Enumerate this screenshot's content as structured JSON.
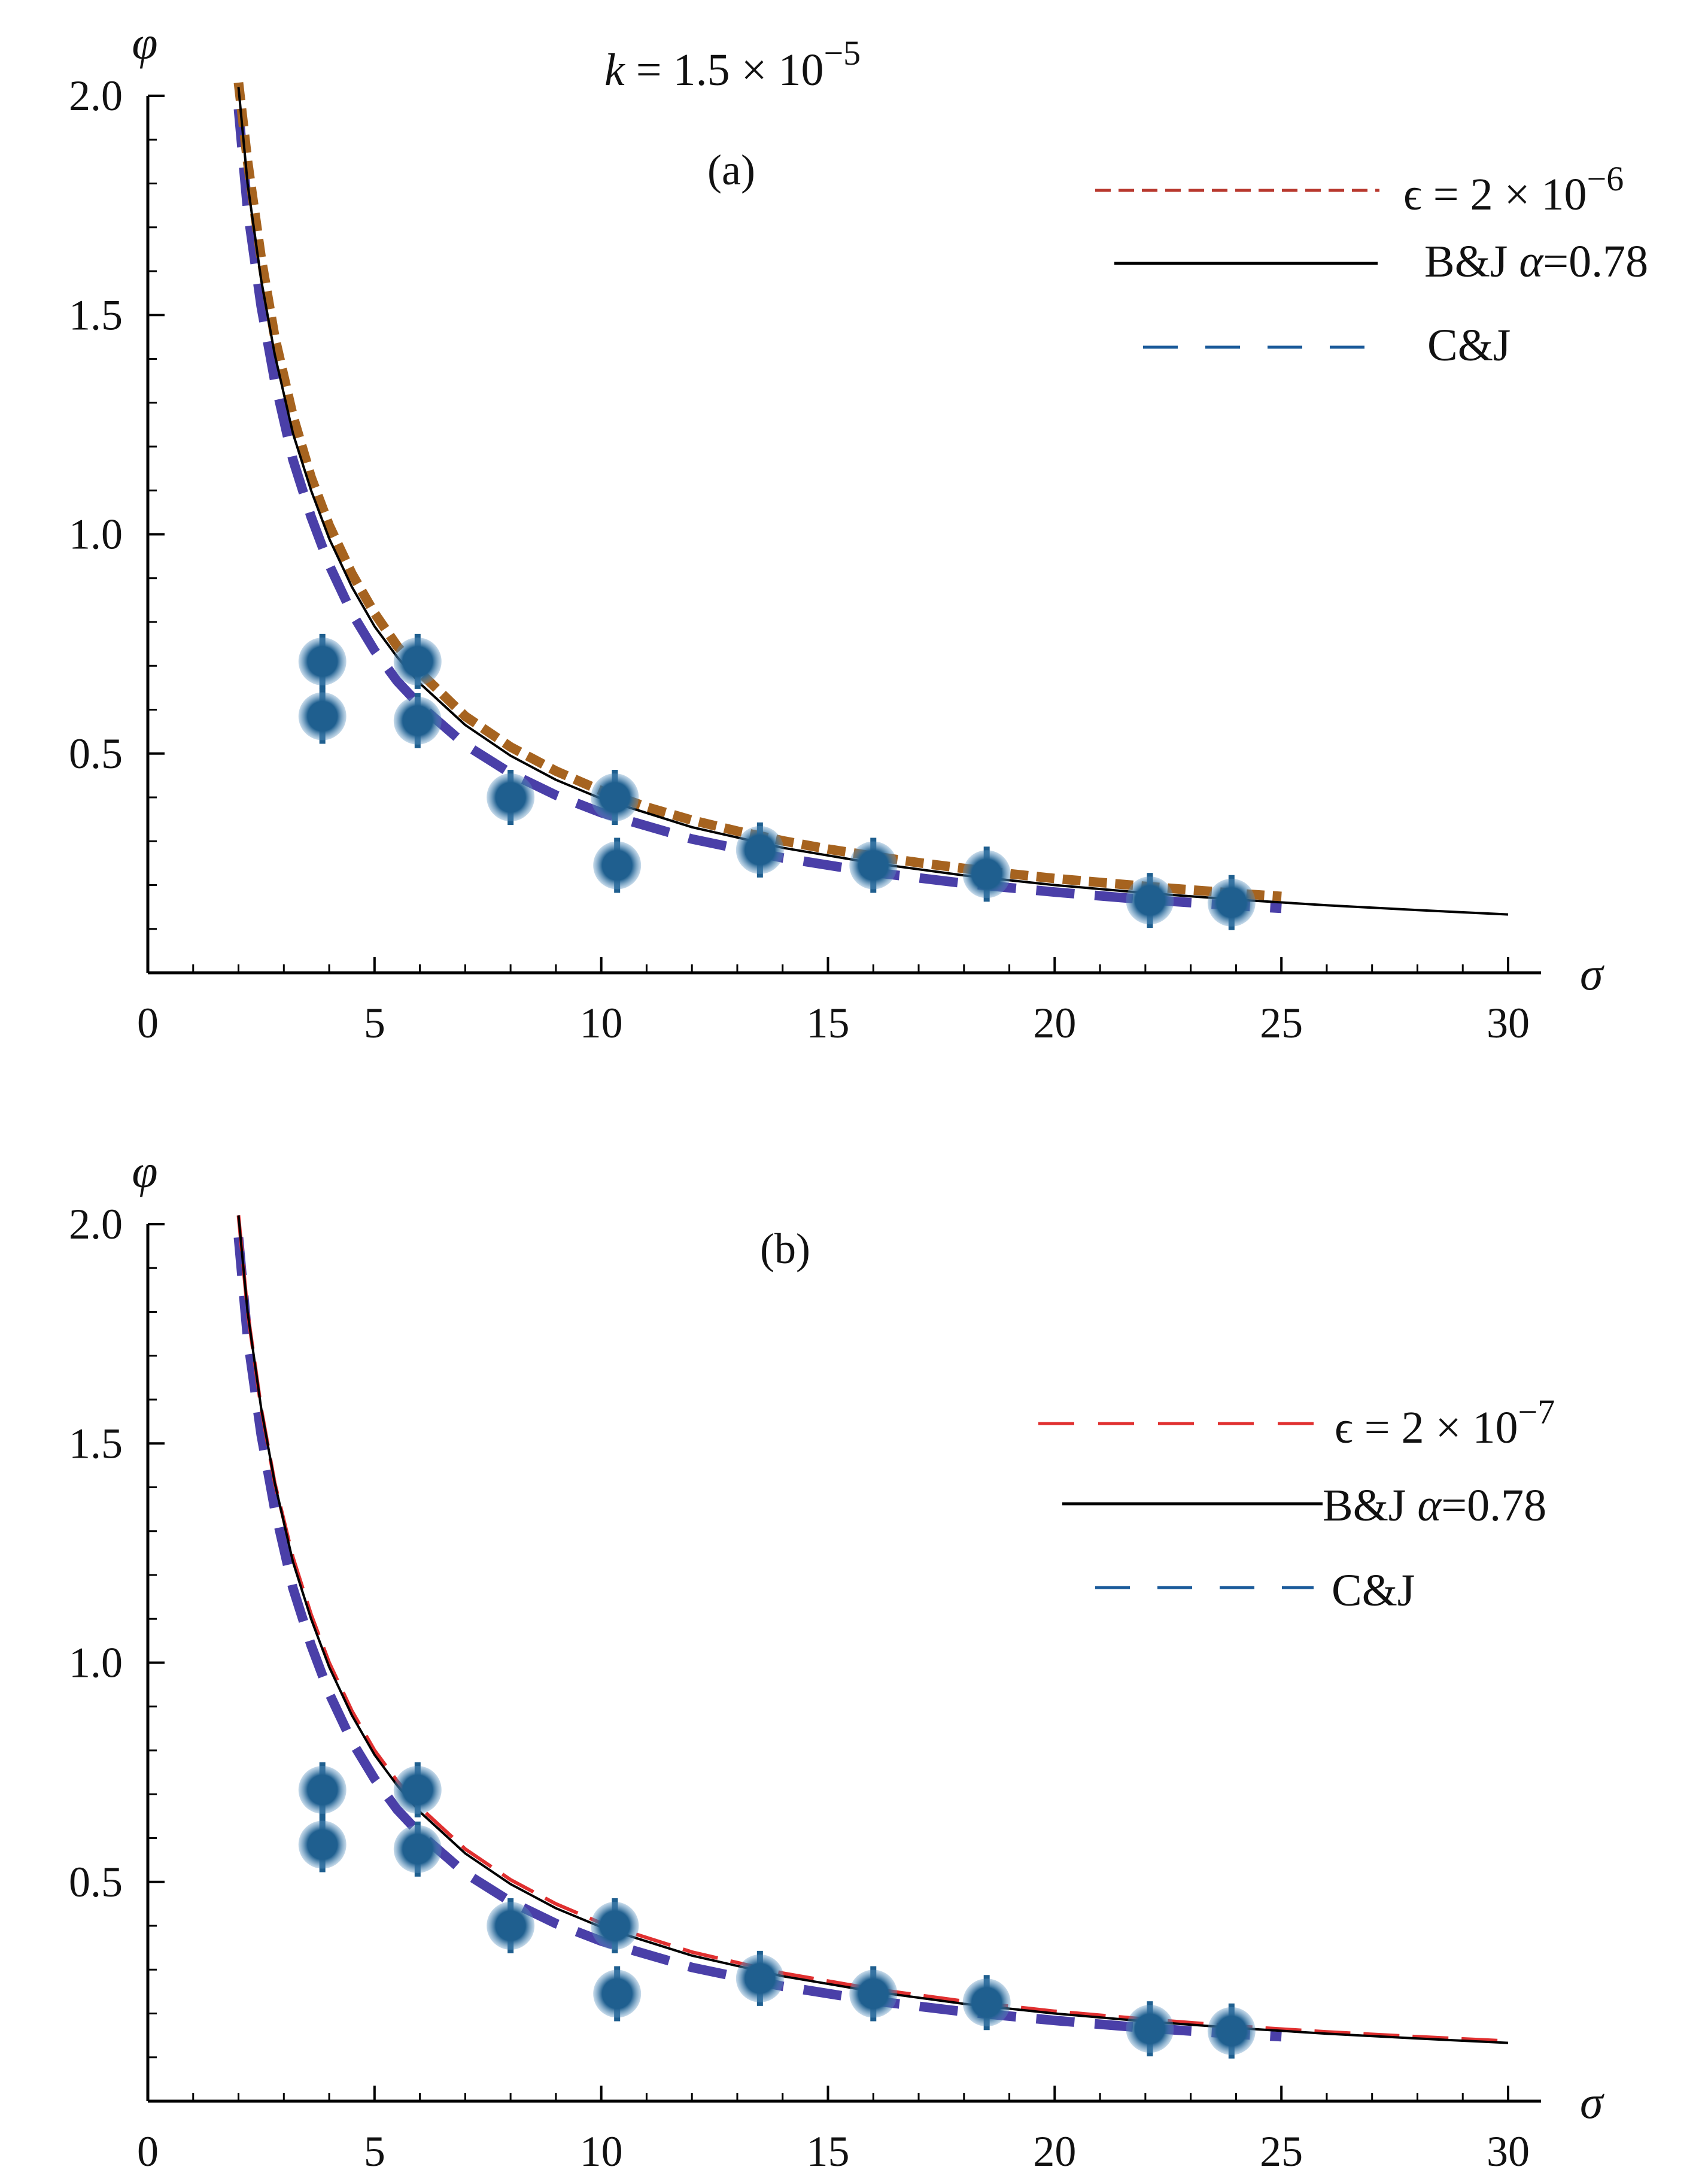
{
  "figure": {
    "header": {
      "k_symbol": "k",
      "k_expr": " = 1.5 × 10",
      "k_exp": "−5"
    }
  },
  "chart_data": [
    {
      "type": "line",
      "panel_label": "(a)",
      "xlabel": "σ",
      "ylabel": "φ",
      "xlim": [
        0,
        30
      ],
      "ylim": [
        0,
        2.0
      ],
      "x_ticks": [
        "0",
        "5",
        "10",
        "15",
        "20",
        "25",
        "30"
      ],
      "y_ticks": [
        "0.5",
        "1.0",
        "1.5",
        "2.0"
      ],
      "legend_position": "top-right",
      "series": [
        {
          "name": "ϵ = 2 × 10",
          "name_exp": "−6",
          "style": "dashed",
          "color": "#a6631f",
          "legend_color": "#b8382e",
          "x": [
            2.0,
            2.2,
            2.5,
            2.8,
            3.2,
            3.6,
            4.0,
            4.5,
            5.0,
            5.5,
            6.0,
            7.0,
            8.0,
            9.0,
            10.0,
            11.0,
            12.0,
            13.0,
            14.0,
            15.0,
            16.0,
            17.0,
            18.0,
            19.0,
            20.0,
            22.0,
            24.0,
            25.0
          ],
          "y": [
            2.03,
            1.85,
            1.63,
            1.45,
            1.27,
            1.13,
            1.02,
            0.91,
            0.82,
            0.745,
            0.685,
            0.585,
            0.515,
            0.46,
            0.415,
            0.378,
            0.348,
            0.323,
            0.301,
            0.282,
            0.266,
            0.251,
            0.238,
            0.226,
            0.215,
            0.197,
            0.181,
            0.174
          ]
        },
        {
          "name": "B&J ",
          "name_alpha": "α",
          "name_tail": "=0.78",
          "style": "solid",
          "color": "#000000",
          "x": [
            2.0,
            2.2,
            2.5,
            2.8,
            3.2,
            3.6,
            4.0,
            4.5,
            5.0,
            5.5,
            6.0,
            7.0,
            8.0,
            9.0,
            10.0,
            12.0,
            14.0,
            16.0,
            18.0,
            20.0,
            22.0,
            24.0,
            26.0,
            28.0,
            30.0
          ],
          "y": [
            2.02,
            1.8,
            1.58,
            1.41,
            1.23,
            1.1,
            0.99,
            0.88,
            0.79,
            0.72,
            0.66,
            0.565,
            0.495,
            0.44,
            0.397,
            0.332,
            0.285,
            0.25,
            0.222,
            0.2,
            0.182,
            0.167,
            0.154,
            0.143,
            0.133
          ]
        },
        {
          "name": "C&J",
          "style": "long-dash",
          "color": "#4a3fa8",
          "legend_color": "#1a5a9a",
          "x": [
            2.0,
            2.2,
            2.5,
            2.8,
            3.2,
            3.6,
            4.0,
            4.5,
            5.0,
            5.5,
            6.0,
            7.0,
            8.0,
            9.0,
            10.0,
            12.0,
            14.0,
            16.0,
            18.0,
            20.0,
            22.0,
            24.0,
            25.0
          ],
          "y": [
            1.97,
            1.74,
            1.52,
            1.35,
            1.17,
            1.04,
            0.93,
            0.82,
            0.735,
            0.665,
            0.61,
            0.52,
            0.455,
            0.405,
            0.365,
            0.305,
            0.262,
            0.229,
            0.204,
            0.184,
            0.167,
            0.153,
            0.147
          ]
        }
      ],
      "points": {
        "name": "measurements",
        "color": "#1f5f8f",
        "x": [
          3.85,
          3.85,
          5.95,
          5.95,
          8.0,
          10.3,
          10.35,
          13.5,
          16.0,
          18.5,
          22.1,
          23.9
        ],
        "y": [
          0.71,
          0.585,
          0.71,
          0.575,
          0.4,
          0.4,
          0.245,
          0.28,
          0.245,
          0.225,
          0.165,
          0.16
        ]
      }
    },
    {
      "type": "line",
      "panel_label": "(b)",
      "xlabel": "σ",
      "ylabel": "φ",
      "xlim": [
        0,
        30
      ],
      "ylim": [
        0,
        2.0
      ],
      "x_ticks": [
        "0",
        "5",
        "10",
        "15",
        "20",
        "25",
        "30"
      ],
      "y_ticks": [
        "0.5",
        "1.0",
        "1.5",
        "2.0"
      ],
      "legend_position": "right",
      "series": [
        {
          "name": "ϵ = 2 × 10",
          "name_exp": "−7",
          "style": "dashed",
          "color": "#e03030",
          "legend_color": "#e03030",
          "x": [
            2.0,
            2.2,
            2.5,
            2.8,
            3.2,
            3.6,
            4.0,
            4.5,
            5.0,
            5.5,
            6.0,
            7.0,
            8.0,
            9.0,
            10.0,
            12.0,
            14.0,
            16.0,
            18.0,
            20.0,
            22.0,
            24.0,
            26.0,
            28.0,
            30.0
          ],
          "y": [
            2.02,
            1.8,
            1.58,
            1.41,
            1.24,
            1.11,
            1.0,
            0.89,
            0.8,
            0.73,
            0.67,
            0.575,
            0.505,
            0.45,
            0.406,
            0.34,
            0.292,
            0.256,
            0.228,
            0.205,
            0.187,
            0.171,
            0.158,
            0.147,
            0.137
          ]
        },
        {
          "name": "B&J ",
          "name_alpha": "α",
          "name_tail": "=0.78",
          "style": "solid",
          "color": "#000000",
          "x": [
            2.0,
            2.2,
            2.5,
            2.8,
            3.2,
            3.6,
            4.0,
            4.5,
            5.0,
            5.5,
            6.0,
            7.0,
            8.0,
            9.0,
            10.0,
            12.0,
            14.0,
            16.0,
            18.0,
            20.0,
            22.0,
            24.0,
            26.0,
            28.0,
            30.0
          ],
          "y": [
            2.02,
            1.8,
            1.58,
            1.41,
            1.23,
            1.1,
            0.99,
            0.88,
            0.79,
            0.72,
            0.66,
            0.565,
            0.495,
            0.44,
            0.397,
            0.332,
            0.285,
            0.25,
            0.222,
            0.2,
            0.182,
            0.167,
            0.154,
            0.143,
            0.133
          ]
        },
        {
          "name": "C&J",
          "style": "long-dash",
          "color": "#4a3fa8",
          "legend_color": "#1a5a9a",
          "x": [
            2.0,
            2.2,
            2.5,
            2.8,
            3.2,
            3.6,
            4.0,
            4.5,
            5.0,
            5.5,
            6.0,
            7.0,
            8.0,
            9.0,
            10.0,
            12.0,
            14.0,
            16.0,
            18.0,
            20.0,
            22.0,
            24.0,
            25.0
          ],
          "y": [
            1.97,
            1.74,
            1.52,
            1.35,
            1.17,
            1.04,
            0.93,
            0.82,
            0.735,
            0.665,
            0.61,
            0.52,
            0.455,
            0.405,
            0.365,
            0.305,
            0.262,
            0.229,
            0.204,
            0.184,
            0.167,
            0.153,
            0.147
          ]
        }
      ],
      "points": {
        "name": "measurements",
        "color": "#1f5f8f",
        "x": [
          3.85,
          3.85,
          5.95,
          5.95,
          8.0,
          10.3,
          10.35,
          13.5,
          16.0,
          18.5,
          22.1,
          23.9
        ],
        "y": [
          0.71,
          0.585,
          0.71,
          0.575,
          0.4,
          0.4,
          0.245,
          0.28,
          0.245,
          0.225,
          0.165,
          0.16
        ]
      }
    }
  ]
}
